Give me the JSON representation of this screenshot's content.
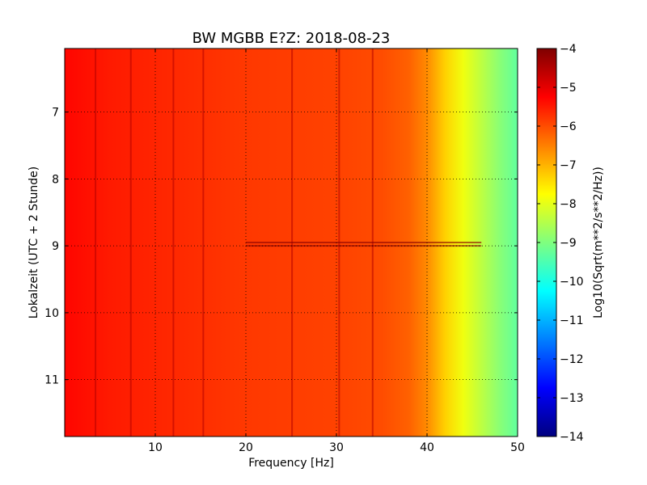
{
  "chart_data": {
    "type": "heatmap",
    "title": "BW MGBB E?Z: 2018-08-23",
    "xlabel": "Frequency [Hz]",
    "ylabel": "Lokalzeit (UTC + 2 Stunde)",
    "xlim": [
      0,
      50
    ],
    "ylim": [
      6.05,
      11.85
    ],
    "x_ticks": [
      10,
      20,
      30,
      40,
      50
    ],
    "y_ticks": [
      7,
      8,
      9,
      10,
      11
    ],
    "y_inverted": true,
    "grid": true,
    "colorbar": {
      "label": "Log10(Sqrt(m**2/s**2/Hz))",
      "range": [
        -14,
        -4
      ],
      "ticks": [
        -4,
        -5,
        -6,
        -7,
        -8,
        -9,
        -10,
        -11,
        -12,
        -13,
        -14
      ],
      "colormap": "jet"
    },
    "spectral_profile": {
      "frequency_hz": [
        0,
        5,
        10,
        15,
        20,
        25,
        30,
        35,
        38,
        40,
        42,
        44,
        46,
        48,
        50
      ],
      "log10_amplitude": [
        -5.3,
        -5.5,
        -5.6,
        -5.7,
        -5.8,
        -5.85,
        -5.9,
        -6.0,
        -6.2,
        -6.6,
        -7.3,
        -7.9,
        -8.4,
        -8.9,
        -9.3
      ]
    },
    "line_features_hz": [
      3.4,
      7.3,
      12.0,
      15.3,
      25.1,
      30.3,
      34.0
    ],
    "time_features_h": [
      8.95,
      9.0
    ]
  }
}
